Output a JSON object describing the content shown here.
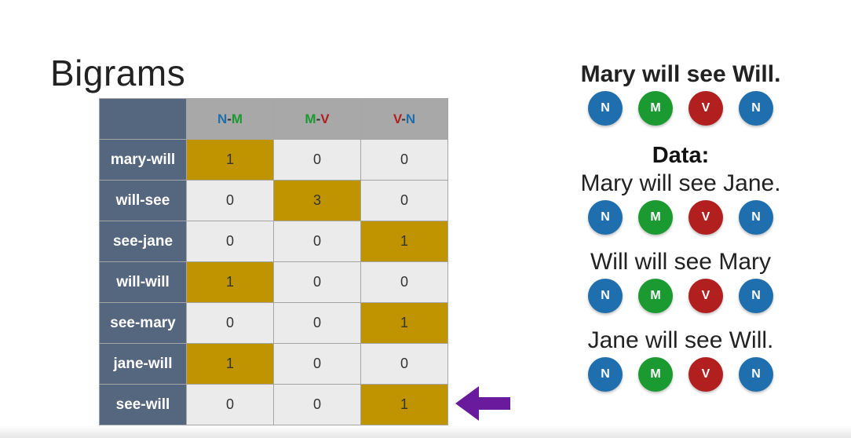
{
  "title": "Bigrams",
  "colors": {
    "N": "#1f6fae",
    "M": "#1a9a30",
    "V": "#b11f1f",
    "highlight": "#bf9400",
    "row_header": "#55667f",
    "arrow": "#6a1a9c"
  },
  "table": {
    "columns": [
      {
        "first": "N",
        "sep": "-",
        "second": "M"
      },
      {
        "first": "M",
        "sep": "-",
        "second": "V"
      },
      {
        "first": "V",
        "sep": "-",
        "second": "N"
      }
    ],
    "rows": [
      {
        "label": "mary-will",
        "values": [
          "1",
          "0",
          "0"
        ],
        "highlight": 0
      },
      {
        "label": "will-see",
        "values": [
          "0",
          "3",
          "0"
        ],
        "highlight": 1
      },
      {
        "label": "see-jane",
        "values": [
          "0",
          "0",
          "1"
        ],
        "highlight": 2
      },
      {
        "label": "will-will",
        "values": [
          "1",
          "0",
          "0"
        ],
        "highlight": 0
      },
      {
        "label": "see-mary",
        "values": [
          "0",
          "0",
          "1"
        ],
        "highlight": 2
      },
      {
        "label": "jane-will",
        "values": [
          "1",
          "0",
          "0"
        ],
        "highlight": 0
      },
      {
        "label": "see-will",
        "values": [
          "0",
          "0",
          "1"
        ],
        "highlight": 2
      }
    ]
  },
  "target": {
    "sentence": "Mary will see Will.",
    "tags": [
      "N",
      "M",
      "V",
      "N"
    ]
  },
  "data_section": {
    "title": "Data:",
    "sentences": [
      {
        "text": "Mary will see Jane.",
        "tags": [
          "N",
          "M",
          "V",
          "N"
        ]
      },
      {
        "text": "Will will see Mary",
        "tags": [
          "N",
          "M",
          "V",
          "N"
        ]
      },
      {
        "text": "Jane will see Will.",
        "tags": [
          "N",
          "M",
          "V",
          "N"
        ]
      }
    ]
  }
}
